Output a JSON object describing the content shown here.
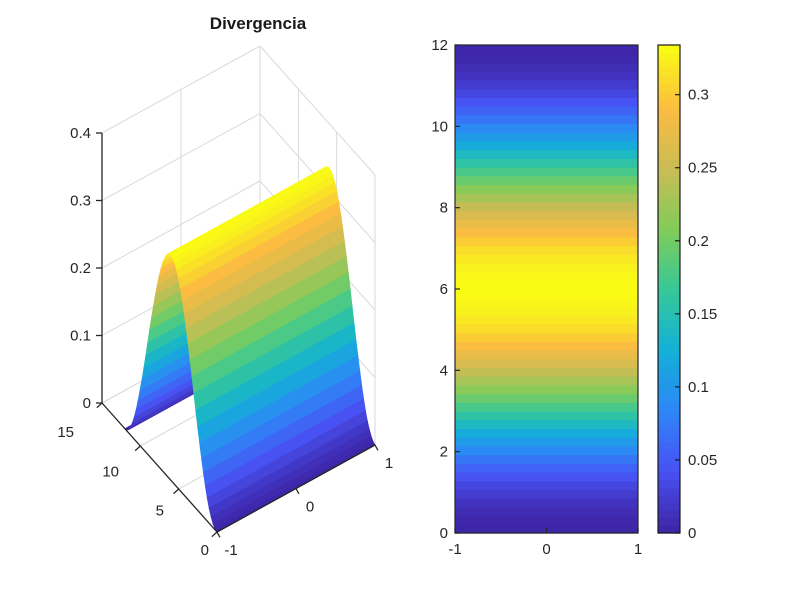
{
  "figure": {
    "background": "#ffffff"
  },
  "colors": {
    "axis": "#262626",
    "grid": "#dadada",
    "text": "#262626"
  },
  "colormap": {
    "name": "parula",
    "stops": [
      "#3e26a8",
      "#4852f4",
      "#2e87f7",
      "#12b1d6",
      "#37c897",
      "#81cc59",
      "#c9bc55",
      "#fbbc41",
      "#f9fb15"
    ]
  },
  "chart_data": [
    {
      "type": "surface",
      "title": "Divergencia",
      "x_range": [
        -1,
        1
      ],
      "y_range": [
        0,
        15
      ],
      "z_range": [
        0,
        0.4
      ],
      "x_ticks": [
        -1,
        0,
        1
      ],
      "y_ticks": [
        0,
        5,
        10,
        15
      ],
      "z_ticks": [
        0,
        0.1,
        0.2,
        0.3,
        0.4
      ],
      "surface_domain": {
        "x": [
          -1,
          1
        ],
        "y": [
          0,
          12
        ]
      },
      "formula": "z(y) = 0.334*sin(pi*y/12)^2, independent of x",
      "peak": {
        "y": 6,
        "z": 0.334
      },
      "profile": {
        "y": [
          0,
          1,
          2,
          3,
          4,
          5,
          6,
          7,
          8,
          9,
          10,
          11,
          12
        ],
        "z": [
          0,
          0.022,
          0.084,
          0.167,
          0.251,
          0.312,
          0.334,
          0.312,
          0.251,
          0.167,
          0.084,
          0.022,
          0
        ]
      },
      "colormap": "parula",
      "grid": true,
      "view": "3D, azimuth -37.5 deg, elevation 30 deg",
      "n_bands": 48
    },
    {
      "type": "heatmap",
      "title": "",
      "x_range": [
        -1,
        1
      ],
      "y_range": [
        0,
        12
      ],
      "x_ticks": [
        -1,
        0,
        1
      ],
      "y_ticks": [
        0,
        2,
        4,
        6,
        8,
        10,
        12
      ],
      "value_formula": "c(y) = 0.334*sin(pi*y/12)^2, uniform in x",
      "color_range": [
        0,
        0.334
      ],
      "profile": {
        "y": [
          0,
          1,
          2,
          3,
          4,
          5,
          6,
          7,
          8,
          9,
          10,
          11,
          12
        ],
        "c": [
          0,
          0.022,
          0.084,
          0.167,
          0.251,
          0.312,
          0.334,
          0.312,
          0.251,
          0.167,
          0.084,
          0.022,
          0
        ]
      },
      "colormap": "parula",
      "n_bands": 56,
      "colorbar": {
        "position": "right",
        "ticks": [
          0,
          0.05,
          0.1,
          0.15,
          0.2,
          0.25,
          0.3
        ],
        "range": [
          0,
          0.334
        ]
      }
    }
  ]
}
